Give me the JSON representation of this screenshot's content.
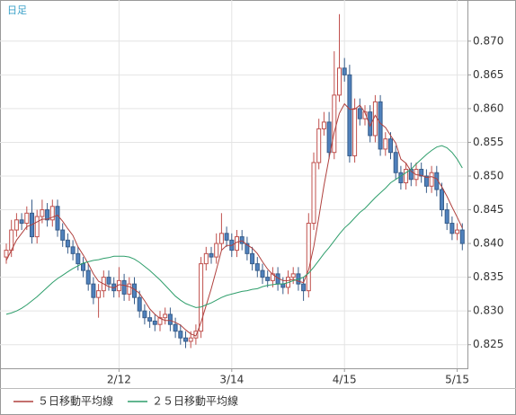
{
  "chart_data": {
    "type": "candlestick",
    "period_label": "日足",
    "categories": [
      null,
      null,
      null,
      null,
      null,
      null,
      null,
      null,
      null,
      null,
      null,
      null,
      null,
      null,
      null,
      null,
      null,
      null,
      null,
      null,
      null,
      null,
      "2/12",
      null,
      null,
      null,
      null,
      null,
      null,
      null,
      null,
      null,
      null,
      null,
      null,
      null,
      null,
      null,
      null,
      null,
      null,
      null,
      null,
      null,
      "3/14",
      null,
      null,
      null,
      null,
      null,
      null,
      null,
      null,
      null,
      null,
      null,
      null,
      null,
      null,
      null,
      null,
      null,
      null,
      null,
      null,
      null,
      "4/15",
      null,
      null,
      null,
      null,
      null,
      null,
      null,
      null,
      null,
      null,
      null,
      null,
      null,
      null,
      null,
      null,
      null,
      null,
      null,
      null,
      null,
      "5/15",
      null
    ],
    "open": [
      0.838,
      0.839,
      0.842,
      0.8435,
      0.843,
      0.8445,
      0.841,
      0.844,
      0.845,
      0.8435,
      0.8455,
      0.842,
      0.8405,
      0.8395,
      0.8385,
      0.837,
      0.836,
      0.834,
      0.832,
      0.833,
      0.835,
      0.834,
      0.833,
      0.8345,
      0.8325,
      0.834,
      0.832,
      0.83,
      0.829,
      0.8285,
      0.828,
      0.829,
      0.8295,
      0.828,
      0.827,
      0.826,
      0.8255,
      0.826,
      0.827,
      0.837,
      0.8385,
      0.838,
      0.84,
      0.8415,
      0.8405,
      0.839,
      0.841,
      0.84,
      0.8385,
      0.837,
      0.836,
      0.835,
      0.8345,
      0.8355,
      0.834,
      0.8335,
      0.835,
      0.8355,
      0.834,
      0.833,
      0.843,
      0.852,
      0.857,
      0.858,
      0.8535,
      0.862,
      0.866,
      0.865,
      0.853,
      0.86,
      0.8585,
      0.8595,
      0.856,
      0.861,
      0.854,
      0.8555,
      0.8535,
      0.8505,
      0.849,
      0.851,
      0.8495,
      0.851,
      0.85,
      0.8485,
      0.8505,
      0.848,
      0.845,
      0.843,
      0.8415,
      0.842
    ],
    "high": [
      0.84,
      0.8435,
      0.8445,
      0.8445,
      0.8455,
      0.8465,
      0.845,
      0.8465,
      0.846,
      0.8465,
      0.8465,
      0.843,
      0.8415,
      0.8405,
      0.8395,
      0.838,
      0.837,
      0.835,
      0.834,
      0.836,
      0.836,
      0.835,
      0.8365,
      0.8355,
      0.835,
      0.835,
      0.833,
      0.831,
      0.83,
      0.8295,
      0.83,
      0.8305,
      0.8305,
      0.829,
      0.828,
      0.827,
      0.827,
      0.828,
      0.838,
      0.8395,
      0.8395,
      0.8415,
      0.8445,
      0.8425,
      0.8415,
      0.842,
      0.842,
      0.841,
      0.8395,
      0.838,
      0.837,
      0.836,
      0.8365,
      0.8365,
      0.835,
      0.836,
      0.8365,
      0.8365,
      0.835,
      0.8445,
      0.8535,
      0.8585,
      0.8595,
      0.8595,
      0.8685,
      0.874,
      0.8675,
      0.8665,
      0.8615,
      0.8615,
      0.8605,
      0.8605,
      0.862,
      0.862,
      0.8565,
      0.8565,
      0.8545,
      0.8515,
      0.852,
      0.852,
      0.852,
      0.852,
      0.851,
      0.8515,
      0.8515,
      0.849,
      0.846,
      0.844,
      0.843,
      0.843
    ],
    "low": [
      0.837,
      0.838,
      0.841,
      0.842,
      0.842,
      0.84,
      0.84,
      0.843,
      0.8425,
      0.8425,
      0.841,
      0.8395,
      0.8385,
      0.8375,
      0.836,
      0.835,
      0.833,
      0.831,
      0.829,
      0.832,
      0.833,
      0.832,
      0.832,
      0.8315,
      0.8315,
      0.831,
      0.829,
      0.828,
      0.8275,
      0.827,
      0.827,
      0.828,
      0.827,
      0.826,
      0.825,
      0.8245,
      0.8245,
      0.825,
      0.826,
      0.836,
      0.837,
      0.837,
      0.839,
      0.8395,
      0.838,
      0.838,
      0.839,
      0.8375,
      0.836,
      0.835,
      0.834,
      0.8335,
      0.8335,
      0.833,
      0.8325,
      0.8325,
      0.834,
      0.833,
      0.8315,
      0.832,
      0.842,
      0.851,
      0.856,
      0.8525,
      0.8525,
      0.861,
      0.864,
      0.852,
      0.852,
      0.8575,
      0.8575,
      0.855,
      0.855,
      0.853,
      0.853,
      0.8525,
      0.8495,
      0.848,
      0.848,
      0.8485,
      0.8485,
      0.849,
      0.8475,
      0.8475,
      0.847,
      0.844,
      0.842,
      0.8405,
      0.8405,
      0.839
    ],
    "close": [
      0.839,
      0.842,
      0.8435,
      0.843,
      0.8445,
      0.841,
      0.844,
      0.845,
      0.8435,
      0.8455,
      0.842,
      0.8405,
      0.8395,
      0.8385,
      0.837,
      0.836,
      0.834,
      0.832,
      0.833,
      0.835,
      0.834,
      0.833,
      0.8345,
      0.8325,
      0.834,
      0.832,
      0.83,
      0.829,
      0.8285,
      0.828,
      0.829,
      0.8295,
      0.828,
      0.827,
      0.826,
      0.8255,
      0.826,
      0.827,
      0.837,
      0.8385,
      0.838,
      0.84,
      0.8415,
      0.8405,
      0.839,
      0.841,
      0.84,
      0.8385,
      0.837,
      0.836,
      0.835,
      0.8345,
      0.8355,
      0.834,
      0.8335,
      0.835,
      0.8355,
      0.834,
      0.833,
      0.843,
      0.852,
      0.857,
      0.858,
      0.8535,
      0.862,
      0.866,
      0.865,
      0.853,
      0.86,
      0.8585,
      0.8595,
      0.856,
      0.861,
      0.854,
      0.8555,
      0.8535,
      0.8505,
      0.849,
      0.851,
      0.8495,
      0.851,
      0.85,
      0.8485,
      0.8505,
      0.848,
      0.845,
      0.843,
      0.8415,
      0.842,
      0.84
    ],
    "up_color": "#c0504d",
    "down_color": "#4f81bd",
    "down_edge_color": "#385d8a",
    "series": [
      {
        "name": "５日移動平均線",
        "color": "#b0413e",
        "values": [
          0.8375,
          0.839,
          0.8405,
          0.8415,
          0.8425,
          0.8428,
          0.8432,
          0.8436,
          0.8436,
          0.8439,
          0.8442,
          0.8433,
          0.8422,
          0.8412,
          0.8395,
          0.8383,
          0.837,
          0.8355,
          0.8344,
          0.834,
          0.8336,
          0.8334,
          0.8339,
          0.8338,
          0.8336,
          0.8332,
          0.8326,
          0.8315,
          0.8303,
          0.8295,
          0.8289,
          0.8286,
          0.8286,
          0.8283,
          0.8279,
          0.8272,
          0.8266,
          0.8263,
          0.8283,
          0.8308,
          0.8333,
          0.8361,
          0.839,
          0.8397,
          0.8397,
          0.8402,
          0.8404,
          0.8398,
          0.8393,
          0.8385,
          0.8373,
          0.8362,
          0.8354,
          0.8349,
          0.8345,
          0.8345,
          0.8347,
          0.8344,
          0.8342,
          0.8361,
          0.8395,
          0.8439,
          0.8486,
          0.8527,
          0.8565,
          0.8593,
          0.8607,
          0.8599,
          0.8599,
          0.8605,
          0.8594,
          0.8574,
          0.859,
          0.8578,
          0.8572,
          0.856,
          0.8549,
          0.8525,
          0.8519,
          0.8507,
          0.8502,
          0.8501,
          0.8498,
          0.8499,
          0.8496,
          0.8484,
          0.847,
          0.8454,
          0.8439,
          0.8423
        ]
      },
      {
        "name": "２５日移動平均線",
        "color": "#2e9e6b",
        "values": [
          0.8295,
          0.8297,
          0.83,
          0.8304,
          0.8309,
          0.8315,
          0.8321,
          0.8328,
          0.8335,
          0.8342,
          0.8348,
          0.8353,
          0.8358,
          0.8363,
          0.8367,
          0.8371,
          0.8373,
          0.8375,
          0.8376,
          0.8378,
          0.8379,
          0.8381,
          0.8381,
          0.8381,
          0.838,
          0.8377,
          0.8372,
          0.8366,
          0.836,
          0.8353,
          0.8346,
          0.8338,
          0.833,
          0.8322,
          0.8316,
          0.8311,
          0.8308,
          0.8305,
          0.8306,
          0.8309,
          0.8312,
          0.8316,
          0.832,
          0.8323,
          0.8325,
          0.8327,
          0.8329,
          0.833,
          0.8332,
          0.8333,
          0.8336,
          0.8338,
          0.8339,
          0.834,
          0.834,
          0.8342,
          0.8345,
          0.8347,
          0.835,
          0.8356,
          0.8365,
          0.8375,
          0.8385,
          0.8394,
          0.8404,
          0.8414,
          0.8423,
          0.843,
          0.8438,
          0.8446,
          0.8452,
          0.846,
          0.8468,
          0.8475,
          0.8482,
          0.849,
          0.8495,
          0.85,
          0.8505,
          0.851,
          0.8518,
          0.8525,
          0.8532,
          0.8538,
          0.8543,
          0.8545,
          0.8542,
          0.8535,
          0.8525,
          0.8512
        ]
      }
    ],
    "ylim": [
      0.8215,
      0.8761
    ],
    "yticks": [
      0.825,
      {
        "value": 0.83,
        "label": "0.830"
      },
      0.835,
      {
        "value": 0.84,
        "label": "0.840"
      },
      0.845,
      {
        "value": 0.85,
        "label": "0.850"
      },
      0.855,
      {
        "value": 0.86,
        "label": "0.860"
      },
      0.865,
      {
        "value": 0.87,
        "label": "0.870"
      }
    ],
    "grid": true
  }
}
